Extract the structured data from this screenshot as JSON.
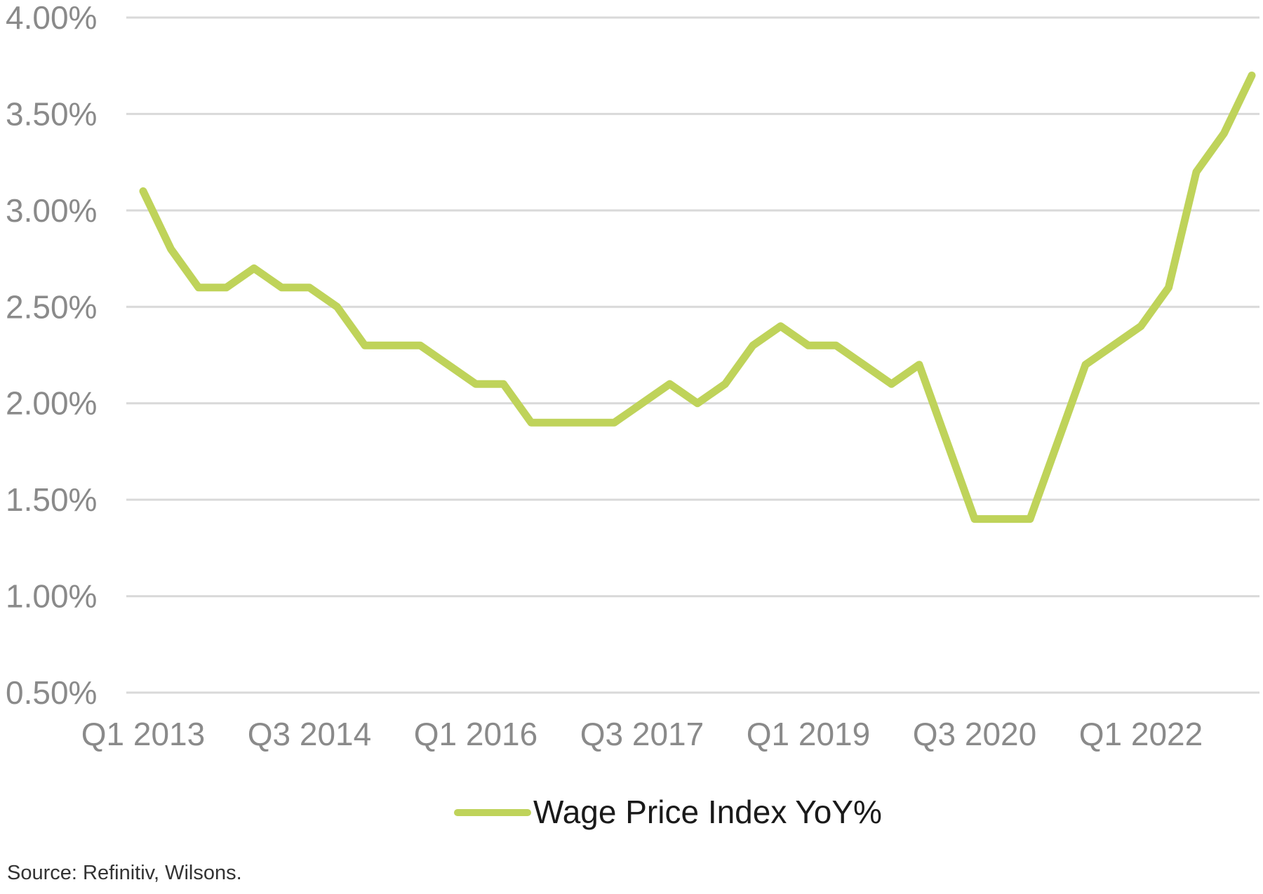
{
  "chart_data": {
    "type": "line",
    "title": "",
    "xlabel": "",
    "ylabel": "",
    "ylim": [
      0.5,
      4.0
    ],
    "y_ticks": [
      "0.50%",
      "1.00%",
      "1.50%",
      "2.00%",
      "2.50%",
      "3.00%",
      "3.50%",
      "4.00%"
    ],
    "x_ticks": [
      "Q1 2013",
      "Q3 2014",
      "Q1 2016",
      "Q3 2017",
      "Q1 2019",
      "Q3 2020",
      "Q1 2022"
    ],
    "grid": true,
    "legend_position": "bottom",
    "x": [
      "Q1 2013",
      "Q2 2013",
      "Q3 2013",
      "Q4 2013",
      "Q1 2014",
      "Q2 2014",
      "Q3 2014",
      "Q4 2014",
      "Q1 2015",
      "Q2 2015",
      "Q3 2015",
      "Q4 2015",
      "Q1 2016",
      "Q2 2016",
      "Q3 2016",
      "Q4 2016",
      "Q1 2017",
      "Q2 2017",
      "Q3 2017",
      "Q4 2017",
      "Q1 2018",
      "Q2 2018",
      "Q3 2018",
      "Q4 2018",
      "Q1 2019",
      "Q2 2019",
      "Q3 2019",
      "Q4 2019",
      "Q1 2020",
      "Q2 2020",
      "Q3 2020",
      "Q4 2020",
      "Q1 2021",
      "Q2 2021",
      "Q3 2021",
      "Q4 2021",
      "Q1 2022",
      "Q2 2022",
      "Q3 2022",
      "Q4 2022",
      "Q1 2023"
    ],
    "series": [
      {
        "name": "Wage Price Index YoY%",
        "color": "#bfd35a",
        "values": [
          3.1,
          2.8,
          2.6,
          2.6,
          2.7,
          2.6,
          2.6,
          2.5,
          2.3,
          2.3,
          2.3,
          2.2,
          2.1,
          2.1,
          1.9,
          1.9,
          1.9,
          1.9,
          2.0,
          2.1,
          2.0,
          2.1,
          2.3,
          2.4,
          2.3,
          2.3,
          2.2,
          2.1,
          2.2,
          1.8,
          1.4,
          1.4,
          1.4,
          1.8,
          2.2,
          2.3,
          2.4,
          2.6,
          3.2,
          3.4,
          3.7
        ]
      }
    ]
  },
  "source_note": "Source: Refinitiv, Wilsons.",
  "colors": {
    "grid": "#d9d9d9",
    "tick_text": "#8a8a8a",
    "legend_text": "#1a1a1a"
  }
}
